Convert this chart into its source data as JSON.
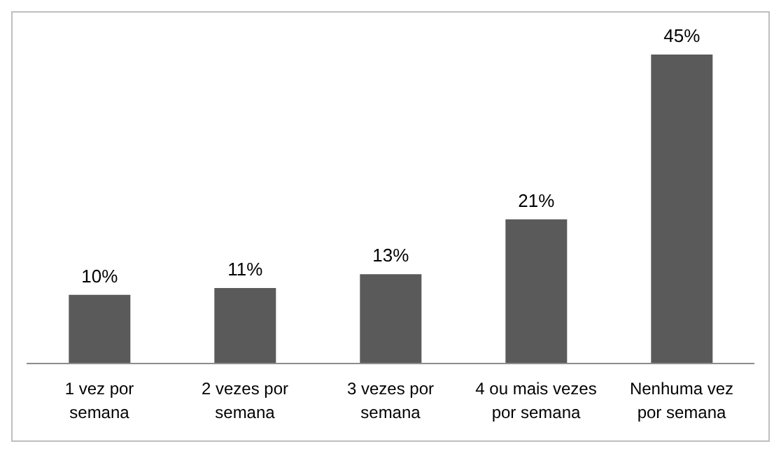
{
  "chart_data": {
    "type": "bar",
    "categories": [
      "1 vez por semana",
      "2 vezes por semana",
      "3 vezes por semana",
      "4 ou mais vezes por semana",
      "Nenhuma vez por semana"
    ],
    "values": [
      10,
      11,
      13,
      21,
      45
    ],
    "value_labels": [
      "10%",
      "11%",
      "13%",
      "21%",
      "45%"
    ],
    "color": "#5a5a5a"
  }
}
